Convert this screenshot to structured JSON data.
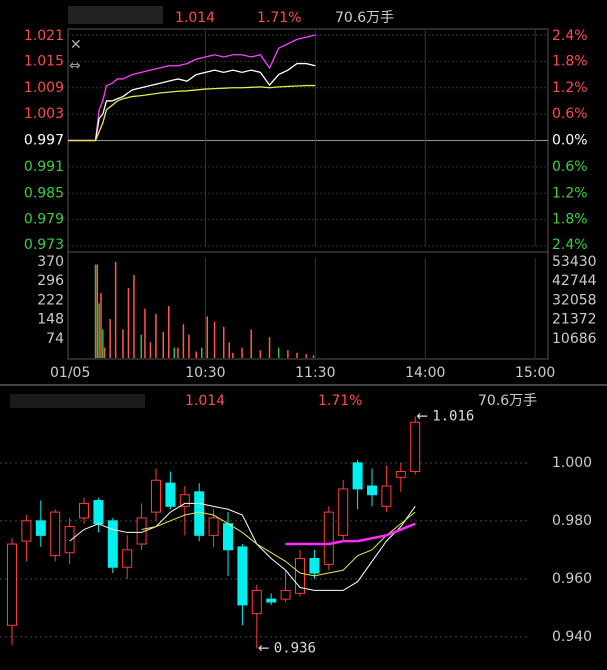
{
  "chart_data": [
    {
      "type": "line",
      "header": {
        "price": "1.014",
        "change": "1.71%",
        "volume": "70.6万手"
      },
      "x": [
        0,
        15,
        17,
        19,
        21,
        24,
        27,
        30,
        35,
        40,
        45,
        50,
        55,
        60,
        65,
        70,
        75,
        80,
        85,
        90,
        95,
        100,
        105,
        110,
        115,
        120,
        125,
        130,
        135
      ],
      "series": [
        {
          "color": "#ff40ff",
          "values": [
            0.997,
            0.997,
            1.004,
            1.006,
            1.0095,
            1.01,
            1.011,
            1.011,
            1.012,
            1.0125,
            1.013,
            1.0135,
            1.014,
            1.014,
            1.0145,
            1.0155,
            1.016,
            1.0165,
            1.016,
            1.0165,
            1.0165,
            1.016,
            1.0165,
            1.0135,
            1.018,
            1.019,
            1.02,
            1.0205,
            1.021
          ]
        },
        {
          "color": "#ffffff",
          "values": [
            0.997,
            0.997,
            1.002,
            1.003,
            1.006,
            1.006,
            1.0065,
            1.007,
            1.0085,
            1.009,
            1.0095,
            1.01,
            1.0105,
            1.011,
            1.0105,
            1.012,
            1.0125,
            1.013,
            1.0125,
            1.013,
            1.0125,
            1.013,
            1.0125,
            1.0096,
            1.012,
            1.013,
            1.0145,
            1.0145,
            1.014
          ]
        },
        {
          "color": "#e8e84a",
          "values": [
            0.997,
            0.997,
            0.999,
            1.001,
            1.004,
            1.005,
            1.006,
            1.0065,
            1.007,
            1.0072,
            1.0075,
            1.0078,
            1.008,
            1.0082,
            1.0083,
            1.0085,
            1.0087,
            1.0088,
            1.0089,
            1.009,
            1.009,
            1.0091,
            1.0092,
            1.009,
            1.0092,
            1.0093,
            1.0094,
            1.0095,
            1.0095
          ]
        }
      ],
      "xlim": [
        0,
        262
      ],
      "xticks": [
        {
          "value": 0,
          "label": "01/05"
        },
        {
          "value": 75,
          "label": "10:30"
        },
        {
          "value": 135,
          "label": "11:30"
        },
        {
          "value": 195,
          "label": "14:00"
        },
        {
          "value": 255,
          "label": "15:00"
        }
      ],
      "ylim": [
        0.973,
        1.021
      ],
      "yticks": [
        1.021,
        1.015,
        1.009,
        1.003,
        0.997,
        0.991,
        0.985,
        0.979,
        0.973
      ],
      "y2lim": [
        -2.4,
        2.4
      ],
      "y2ticks": [
        {
          "value": 2.4,
          "label": "2.4%"
        },
        {
          "value": 1.8,
          "label": "1.8%"
        },
        {
          "value": 1.2,
          "label": "1.2%"
        },
        {
          "value": 0.6,
          "label": "0.6%"
        },
        {
          "value": 0,
          "label": "0.0%"
        },
        {
          "value": -0.6,
          "label": "0.6%"
        },
        {
          "value": -1.2,
          "label": "1.2%"
        },
        {
          "value": -1.8,
          "label": "1.8%"
        },
        {
          "value": -2.4,
          "label": "2.4%"
        }
      ],
      "up_color": "#ff4a4a",
      "down_color": "#3ccf3c",
      "flat_color": "#ffffff",
      "grid": true
    },
    {
      "type": "bar",
      "x": [
        15,
        16,
        17,
        18,
        19,
        20,
        23,
        26,
        30,
        33,
        36,
        40,
        42,
        45,
        48,
        52,
        55,
        58,
        60,
        63,
        66,
        70,
        73,
        76,
        80,
        85,
        88,
        90,
        95,
        100,
        105,
        110,
        115,
        120,
        125,
        130,
        134
      ],
      "values": [
        360,
        360,
        210,
        250,
        110,
        40,
        150,
        370,
        110,
        270,
        320,
        90,
        190,
        60,
        170,
        100,
        200,
        40,
        40,
        130,
        90,
        25,
        40,
        160,
        140,
        120,
        60,
        20,
        40,
        110,
        30,
        80,
        40,
        30,
        20,
        15,
        10
      ],
      "colors": [
        "#2ebf3e",
        "#ff5a4a",
        "#2ebf3e",
        "#ff5a4a",
        "#2ebf3e",
        "#ff5a4a",
        "#ff5a4a",
        "#ff5a4a",
        "#ff5a4a",
        "#ff5a4a",
        "#ff5a4a",
        "#2ebf3e",
        "#ff5a4a",
        "#ff5a4a",
        "#ff5a4a",
        "#ff5a4a",
        "#ff5a4a",
        "#2ebf3e",
        "#ff5a4a",
        "#ff5a4a",
        "#ff5a4a",
        "#ff5a4a",
        "#2ebf3e",
        "#ff5a4a",
        "#ff5a4a",
        "#ff5a4a",
        "#ff5a4a",
        "#ff5a4a",
        "#ff5a4a",
        "#ff5a4a",
        "#ff5a4a",
        "#ff5a4a",
        "#2ebf3e",
        "#ff5a4a",
        "#ff5a4a",
        "#ff5a4a",
        "#ff5a4a"
      ],
      "xlim": [
        0,
        262
      ],
      "ylim": [
        0,
        385
      ],
      "yticks": [
        370,
        296,
        222,
        148,
        74
      ],
      "y2lim": [
        0,
        55600
      ],
      "y2ticks": [
        53430,
        42744,
        32058,
        21372,
        10686
      ]
    },
    {
      "type": "candlestick",
      "header": {
        "price": "1.014",
        "change": "1.71%",
        "volume": "70.6万手"
      },
      "open": [
        0.944,
        0.973,
        0.98,
        0.968,
        0.969,
        0.981,
        0.987,
        0.98,
        0.964,
        0.972,
        0.983,
        0.993,
        0.985,
        0.99,
        0.975,
        0.979,
        0.971,
        0.948,
        0.953,
        0.953,
        0.955,
        0.967,
        0.965,
        0.975,
        1.0,
        0.992,
        0.985,
        0.995,
        0.997
      ],
      "high": [
        0.974,
        0.982,
        0.987,
        0.984,
        0.981,
        0.988,
        0.988,
        0.981,
        0.975,
        0.986,
        0.998,
        0.997,
        0.992,
        0.993,
        0.984,
        0.983,
        0.972,
        0.958,
        0.955,
        0.963,
        0.97,
        0.97,
        0.985,
        0.994,
        1.001,
        0.998,
        0.999,
        1.0,
        1.016
      ],
      "low": [
        0.937,
        0.966,
        0.971,
        0.966,
        0.965,
        0.979,
        0.976,
        0.962,
        0.96,
        0.97,
        0.98,
        0.984,
        0.975,
        0.973,
        0.971,
        0.961,
        0.944,
        0.936,
        0.951,
        0.952,
        0.954,
        0.96,
        0.963,
        0.973,
        0.984,
        0.985,
        0.983,
        0.99,
        0.996
      ],
      "close": [
        0.972,
        0.98,
        0.975,
        0.983,
        0.978,
        0.986,
        0.979,
        0.964,
        0.97,
        0.981,
        0.994,
        0.985,
        0.989,
        0.975,
        0.981,
        0.97,
        0.951,
        0.956,
        0.952,
        0.956,
        0.967,
        0.962,
        0.983,
        0.991,
        0.991,
        0.989,
        0.992,
        0.997,
        1.014
      ],
      "ma": [
        {
          "color": "#ffffff",
          "values": [
            null,
            null,
            null,
            null,
            0.973,
            0.977,
            0.979,
            0.977,
            0.976,
            0.976,
            0.978,
            0.983,
            0.986,
            0.986,
            0.985,
            0.984,
            0.982,
            0.972,
            0.967,
            0.963,
            0.957,
            0.956,
            0.956,
            0.956,
            0.959,
            0.966,
            0.973,
            0.978,
            0.985
          ]
        },
        {
          "color": "#e8e84a",
          "values": [
            null,
            null,
            null,
            null,
            null,
            null,
            null,
            null,
            null,
            0.977,
            0.978,
            0.98,
            0.982,
            0.983,
            0.982,
            0.979,
            0.976,
            0.972,
            0.969,
            0.966,
            0.962,
            0.961,
            0.962,
            0.963,
            0.968,
            0.97,
            0.975,
            0.979,
            0.983
          ]
        },
        {
          "color": "#ff2cff",
          "values": [
            null,
            null,
            null,
            null,
            null,
            null,
            null,
            null,
            null,
            null,
            null,
            null,
            null,
            null,
            null,
            null,
            null,
            null,
            null,
            0.972,
            0.972,
            0.972,
            0.972,
            0.973,
            0.973,
            0.974,
            0.975,
            0.977,
            0.979
          ]
        }
      ],
      "annotations": [
        "1.016",
        "0.936"
      ],
      "ylim": [
        0.932,
        1.0234
      ],
      "yticks": [
        {
          "value": 1,
          "label": "1.000"
        },
        {
          "value": 0.98,
          "label": "0.980"
        },
        {
          "value": 0.96,
          "label": "0.960"
        },
        {
          "value": 0.94,
          "label": "0.940"
        }
      ],
      "up_color": "#ff3b3b",
      "down_color": "#00f0f0",
      "grid": true
    }
  ]
}
